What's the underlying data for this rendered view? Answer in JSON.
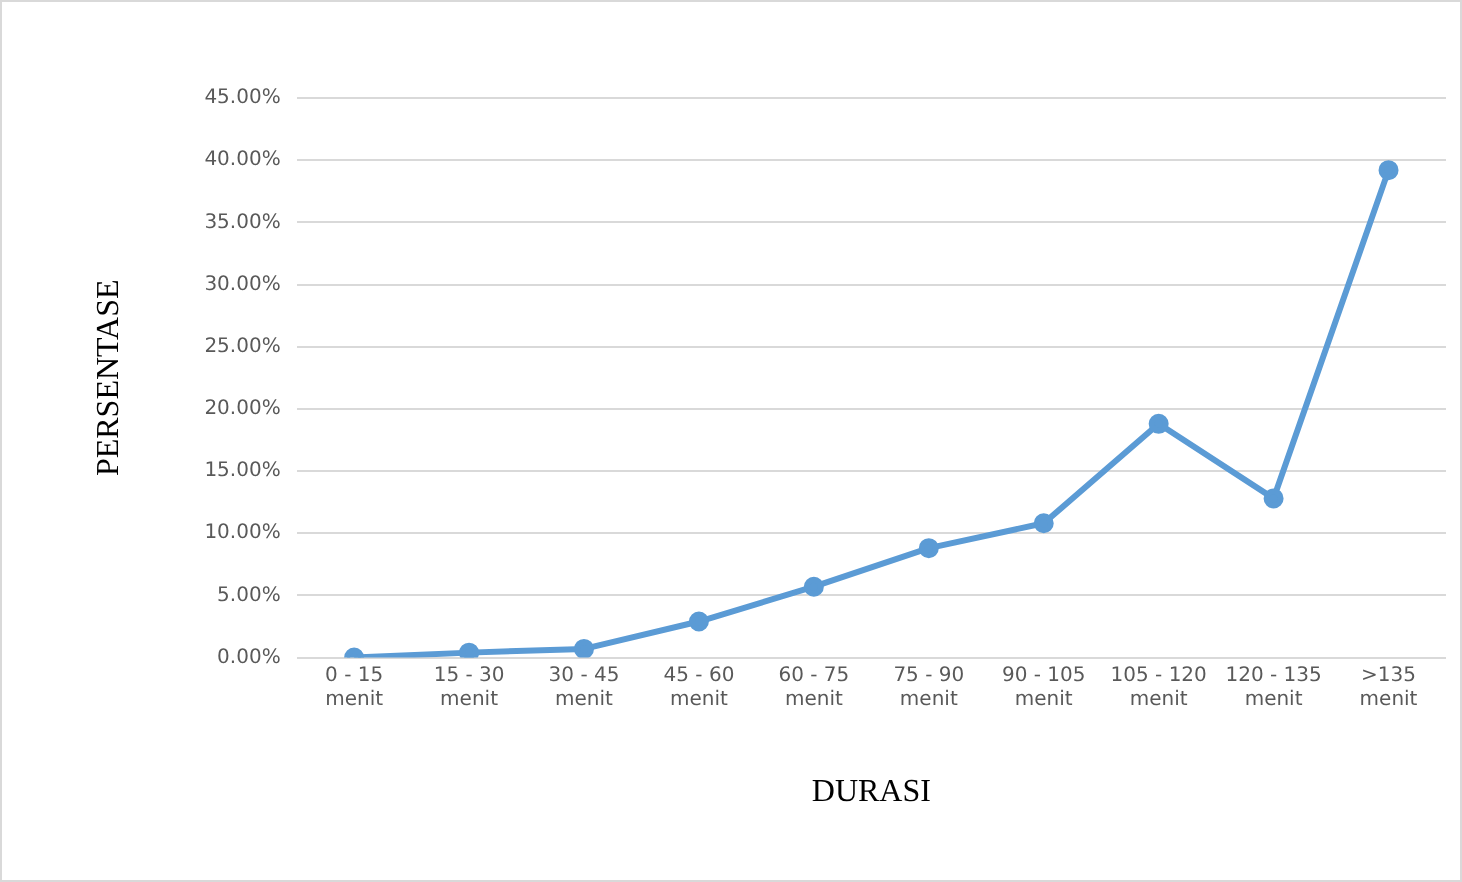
{
  "chart_data": {
    "type": "line",
    "xlabel": "DURASI",
    "ylabel": "PERSENTASE",
    "categories": [
      "0 - 15 menit",
      "15 - 30 menit",
      "30 - 45 menit",
      "45 - 60 menit",
      "60 - 75 menit",
      "75 - 90 menit",
      "90 - 105 menit",
      "105 - 120 menit",
      "120 - 135 menit",
      ">135 menit"
    ],
    "series": [
      {
        "color": "#5b9bd5",
        "values": [
          0,
          0.4,
          0.7,
          2.9,
          5.7,
          8.8,
          10.8,
          18.8,
          12.8,
          39.2
        ]
      }
    ],
    "ylim": [
      0,
      45
    ],
    "yticks": [
      {
        "value": 0,
        "label": "0.00%"
      },
      {
        "value": 5,
        "label": "5.00%"
      },
      {
        "value": 10,
        "label": "10.00%"
      },
      {
        "value": 15,
        "label": "15.00%"
      },
      {
        "value": 20,
        "label": "20.00%"
      },
      {
        "value": 25,
        "label": "25.00%"
      },
      {
        "value": 30,
        "label": "30.00%"
      },
      {
        "value": 35,
        "label": "35.00%"
      },
      {
        "value": 40,
        "label": "40.00%"
      },
      {
        "value": 45,
        "label": "45.00%"
      }
    ],
    "grid": "y",
    "marker": "circle",
    "line_style": "solid",
    "legend": false
  }
}
